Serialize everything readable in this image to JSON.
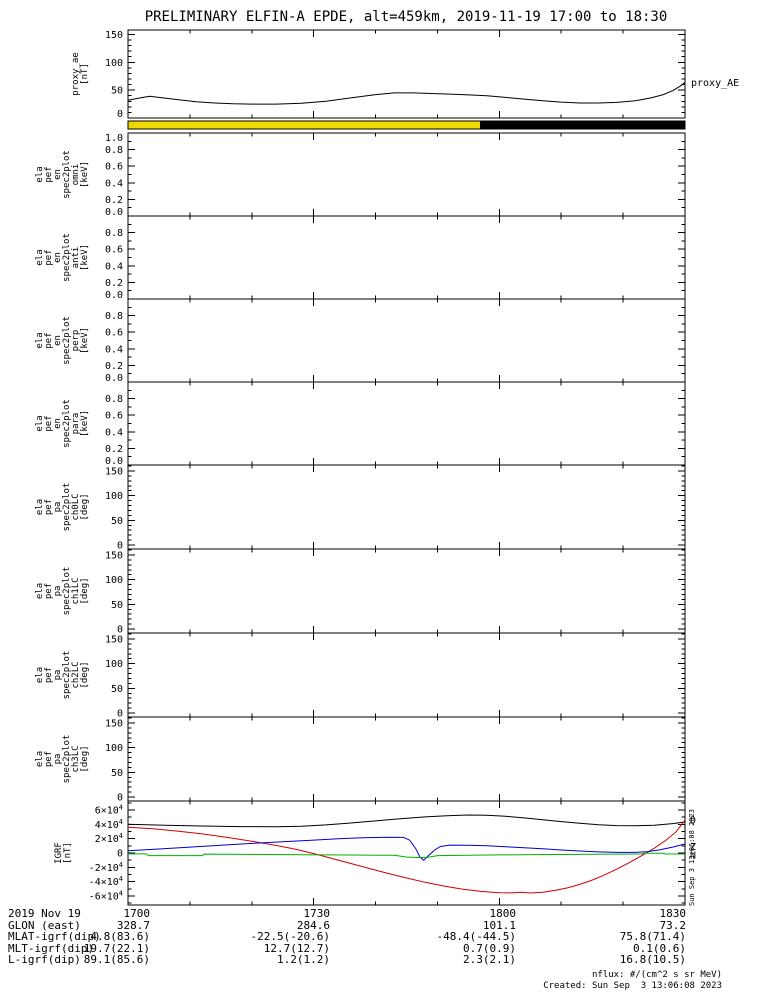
{
  "title": "PRELIMINARY ELFIN-A EPDE, alt=459km, 2019-11-19 17:00 to 18:30",
  "right_labels": {
    "proxy_ae": "proxy_AE"
  },
  "colors": {
    "sunlight_yellow": "#f0d800",
    "line_black": "#000000",
    "line_red": "#d00000",
    "line_blue": "#0000d0",
    "line_green": "#00b000"
  },
  "colorbar": {
    "segments": [
      {
        "color": "#f0d800",
        "from": 0.0,
        "to": 0.632
      },
      {
        "color": "#000000",
        "from": 0.632,
        "to": 1.0
      }
    ]
  },
  "panels": [
    {
      "id": "proxy_ae",
      "ylabel_lines": [
        "proxy_ae",
        "[nT]"
      ],
      "yticks": [
        [
          0,
          "0"
        ],
        [
          50,
          "50"
        ],
        [
          100,
          "100"
        ],
        [
          150,
          "150"
        ]
      ],
      "minor_step": 10
    },
    {
      "id": "en_omni",
      "ylabel_lines": [
        "ela",
        "pef",
        "en",
        "spec2plot",
        "omni",
        "[keV]"
      ],
      "yticks": [
        [
          0,
          "0.0"
        ],
        [
          0.2,
          "0.2"
        ],
        [
          0.4,
          "0.4"
        ],
        [
          0.6,
          "0.6"
        ],
        [
          0.8,
          "0.8"
        ],
        [
          1,
          "1.0"
        ]
      ],
      "minor_step": 0.1
    },
    {
      "id": "en_anti",
      "ylabel_lines": [
        "ela",
        "pef",
        "en",
        "spec2plot",
        "anti",
        "[keV]"
      ],
      "yticks": [
        [
          0,
          "0.0"
        ],
        [
          0.2,
          "0.2"
        ],
        [
          0.4,
          "0.4"
        ],
        [
          0.6,
          "0.6"
        ],
        [
          0.8,
          "0.8"
        ],
        [
          1,
          "1.0"
        ]
      ],
      "minor_step": 0.1,
      "suppress_top": true
    },
    {
      "id": "en_perp",
      "ylabel_lines": [
        "ela",
        "pef",
        "en",
        "spec2plot",
        "perp",
        "[keV]"
      ],
      "yticks": [
        [
          0,
          "0.0"
        ],
        [
          0.2,
          "0.2"
        ],
        [
          0.4,
          "0.4"
        ],
        [
          0.6,
          "0.6"
        ],
        [
          0.8,
          "0.8"
        ],
        [
          1,
          "1.0"
        ]
      ],
      "minor_step": 0.1,
      "suppress_top": true
    },
    {
      "id": "en_para",
      "ylabel_lines": [
        "ela",
        "pef",
        "en",
        "spec2plot",
        "para",
        "[keV]"
      ],
      "yticks": [
        [
          0,
          "0.0"
        ],
        [
          0.2,
          "0.2"
        ],
        [
          0.4,
          "0.4"
        ],
        [
          0.6,
          "0.6"
        ],
        [
          0.8,
          "0.8"
        ],
        [
          1,
          "1.0"
        ]
      ],
      "minor_step": 0.1,
      "suppress_top": true
    },
    {
      "id": "pa_ch0lc",
      "ylabel_lines": [
        "ela",
        "pef",
        "pa",
        "spec2plot",
        "ch0LC",
        "[deg]"
      ],
      "yticks": [
        [
          0,
          "0"
        ],
        [
          50,
          "50"
        ],
        [
          100,
          "100"
        ],
        [
          150,
          "150"
        ]
      ],
      "minor_step": 10
    },
    {
      "id": "pa_ch1lc",
      "ylabel_lines": [
        "ela",
        "pef",
        "pa",
        "spec2plot",
        "ch1LC",
        "[deg]"
      ],
      "yticks": [
        [
          0,
          "0"
        ],
        [
          50,
          "50"
        ],
        [
          100,
          "100"
        ],
        [
          150,
          "150"
        ]
      ],
      "minor_step": 10
    },
    {
      "id": "pa_ch2lc",
      "ylabel_lines": [
        "ela",
        "pef",
        "pa",
        "spec2plot",
        "ch2LC",
        "[deg]"
      ],
      "yticks": [
        [
          0,
          "0"
        ],
        [
          50,
          "50"
        ],
        [
          100,
          "100"
        ],
        [
          150,
          "150"
        ]
      ],
      "minor_step": 10
    },
    {
      "id": "pa_ch3lc",
      "ylabel_lines": [
        "ela",
        "pef",
        "pa",
        "spec2plot",
        "ch3LC",
        "[deg]"
      ],
      "yticks": [
        [
          0,
          "0"
        ],
        [
          50,
          "50"
        ],
        [
          100,
          "100"
        ],
        [
          150,
          "150"
        ]
      ],
      "minor_step": 10
    },
    {
      "id": "igrf",
      "ylabel_lines": [
        "IGRF",
        "[nT]"
      ],
      "yticks": [
        [
          -60000,
          "-6×10^4"
        ],
        [
          -40000,
          "-4×10^4"
        ],
        [
          -20000,
          "-2×10^4"
        ],
        [
          0,
          "0"
        ],
        [
          20000,
          "2×10^4"
        ],
        [
          40000,
          "4×10^4"
        ],
        [
          60000,
          "6×10^4"
        ]
      ],
      "minor_step": 10000
    }
  ],
  "chart_data": [
    {
      "type": "line",
      "panel": "proxy_ae",
      "title": "proxy_AE",
      "ylabel": "proxy_ae [nT]",
      "ylim": [
        0,
        150
      ],
      "xlim_minutes_after_1700": [
        0,
        90
      ],
      "x_tick_labels": [
        "1700",
        "1730",
        "1800",
        "1830"
      ],
      "series": [
        {
          "name": "proxy_AE",
          "color": "#000000",
          "points": [
            [
              0,
              32
            ],
            [
              2,
              36
            ],
            [
              3.5,
              39
            ],
            [
              5,
              37
            ],
            [
              8,
              33
            ],
            [
              11,
              29
            ],
            [
              14,
              27
            ],
            [
              17,
              25.5
            ],
            [
              20,
              25
            ],
            [
              24,
              25
            ],
            [
              28,
              26.5
            ],
            [
              32,
              30
            ],
            [
              36,
              36
            ],
            [
              40,
              42
            ],
            [
              43,
              45
            ],
            [
              46,
              45
            ],
            [
              49,
              44
            ],
            [
              52,
              43
            ],
            [
              55,
              41.5
            ],
            [
              58,
              40
            ],
            [
              61,
              37
            ],
            [
              64,
              34
            ],
            [
              67,
              31
            ],
            [
              70,
              28.5
            ],
            [
              73,
              27
            ],
            [
              76,
              27
            ],
            [
              79,
              28
            ],
            [
              82,
              31
            ],
            [
              84.5,
              36
            ],
            [
              86.5,
              42
            ],
            [
              88,
              49
            ],
            [
              89.2,
              57
            ],
            [
              90,
              64
            ]
          ]
        }
      ]
    },
    {
      "type": "line",
      "panel": "igrf",
      "title": "IGRF",
      "ylabel": "IGRF [nT]",
      "ylim": [
        -60000,
        60000
      ],
      "xlim_minutes_after_1700": [
        0,
        90
      ],
      "x_tick_labels": [
        "1700",
        "1730",
        "1800",
        "1830"
      ],
      "series": [
        {
          "name": "B",
          "color": "#000000",
          "points": [
            [
              0,
              40000
            ],
            [
              6,
              38800
            ],
            [
              12,
              37600
            ],
            [
              18,
              36800
            ],
            [
              24,
              36600
            ],
            [
              28,
              37400
            ],
            [
              32,
              39200
            ],
            [
              36,
              41800
            ],
            [
              40,
              44800
            ],
            [
              44,
              47800
            ],
            [
              48,
              50400
            ],
            [
              52,
              52200
            ],
            [
              55,
              53000
            ],
            [
              58,
              52600
            ],
            [
              61,
              51200
            ],
            [
              64,
              49000
            ],
            [
              67,
              46400
            ],
            [
              70,
              43800
            ],
            [
              73,
              41400
            ],
            [
              76,
              39400
            ],
            [
              79,
              38200
            ],
            [
              82,
              38000
            ],
            [
              85,
              38800
            ],
            [
              88,
              41000
            ],
            [
              90,
              43200
            ]
          ]
        },
        {
          "name": "D",
          "color": "#d00000",
          "points": [
            [
              0,
              36000
            ],
            [
              4,
              33800
            ],
            [
              8,
              30600
            ],
            [
              12,
              26600
            ],
            [
              16,
              21800
            ],
            [
              20,
              16400
            ],
            [
              24,
              10400
            ],
            [
              27,
              5400
            ],
            [
              30,
              -800
            ],
            [
              33,
              -7600
            ],
            [
              36,
              -14600
            ],
            [
              39,
              -21600
            ],
            [
              42,
              -28400
            ],
            [
              45,
              -34800
            ],
            [
              48,
              -40800
            ],
            [
              51,
              -46000
            ],
            [
              54,
              -50400
            ],
            [
              57,
              -53600
            ],
            [
              60,
              -55400
            ],
            [
              62,
              -55600
            ],
            [
              63.5,
              -54600
            ],
            [
              65,
              -55800
            ],
            [
              67,
              -54600
            ],
            [
              69,
              -52200
            ],
            [
              71,
              -48600
            ],
            [
              73,
              -43800
            ],
            [
              75,
              -37800
            ],
            [
              77,
              -30600
            ],
            [
              79,
              -22400
            ],
            [
              81,
              -13400
            ],
            [
              83,
              -3800
            ],
            [
              85,
              6600
            ],
            [
              87,
              18200
            ],
            [
              88.5,
              29000
            ],
            [
              89.5,
              40000
            ],
            [
              90,
              46000
            ]
          ]
        },
        {
          "name": "Z",
          "color": "#0000d0",
          "points": [
            [
              0,
              3000
            ],
            [
              5,
              5600
            ],
            [
              10,
              8200
            ],
            [
              15,
              10800
            ],
            [
              20,
              13400
            ],
            [
              25,
              15800
            ],
            [
              30,
              18000
            ],
            [
              34,
              19800
            ],
            [
              38,
              21200
            ],
            [
              42,
              22000
            ],
            [
              44.5,
              21800
            ],
            [
              45.5,
              18000
            ],
            [
              46.5,
              6000
            ],
            [
              47.2,
              -6000
            ],
            [
              47.8,
              -10000
            ],
            [
              48.5,
              -4000
            ],
            [
              49.5,
              4000
            ],
            [
              50.5,
              9000
            ],
            [
              52,
              11000
            ],
            [
              55,
              10800
            ],
            [
              58,
              10000
            ],
            [
              61,
              8800
            ],
            [
              64,
              7400
            ],
            [
              67,
              5800
            ],
            [
              70,
              4200
            ],
            [
              73,
              2800
            ],
            [
              76,
              1600
            ],
            [
              79,
              800
            ],
            [
              82,
              800
            ],
            [
              84,
              2000
            ],
            [
              86,
              4600
            ],
            [
              88,
              8200
            ],
            [
              90,
              12600
            ]
          ]
        },
        {
          "name": "N",
          "color": "#00b000",
          "points": [
            [
              0,
              -1200
            ],
            [
              3,
              -1200
            ],
            [
              3.3,
              -3600
            ],
            [
              12,
              -3600
            ],
            [
              12.3,
              -1600
            ],
            [
              20,
              -2000
            ],
            [
              28,
              -2400
            ],
            [
              36,
              -2800
            ],
            [
              43,
              -3200
            ],
            [
              45,
              -5600
            ],
            [
              47,
              -6400
            ],
            [
              48.5,
              -6000
            ],
            [
              50,
              -3600
            ],
            [
              55,
              -3000
            ],
            [
              60,
              -2600
            ],
            [
              66,
              -2200
            ],
            [
              72,
              -1900
            ],
            [
              78,
              -1600
            ],
            [
              83,
              -1400
            ],
            [
              83.3,
              -400
            ],
            [
              86.5,
              -400
            ],
            [
              86.8,
              -1400
            ],
            [
              90,
              -1400
            ]
          ]
        }
      ]
    }
  ],
  "igrf_labels": [
    {
      "text": "D",
      "color": "#d00000",
      "value": 46000
    },
    {
      "text": "Z",
      "color": "#0000d0",
      "value": 9000
    },
    {
      "text": "N",
      "color": "#00b000",
      "value": -3000
    }
  ],
  "footer": {
    "rows": [
      {
        "label": "2019 Nov 19",
        "values": [
          "1700",
          "1730",
          "1800",
          "1830"
        ]
      },
      {
        "label": "GLON (east)",
        "values": [
          "328.7",
          "284.6",
          "101.1",
          "73.2"
        ]
      },
      {
        "label": "MLAT-igrf(dip)",
        "values": [
          "4.8(83.6)",
          "-22.5(-20.6)",
          "-48.4(-44.5)",
          "75.8(71.4)"
        ]
      },
      {
        "label": "MLT-igrf(dip)",
        "values": [
          "19.7(22.1)",
          "12.7(12.7)",
          "0.7(0.9)",
          "0.1(0.6)"
        ]
      },
      {
        "label": "L-igrf(dip)",
        "values": [
          "89.1(85.6)",
          "1.2(1.2)",
          "2.3(2.1)",
          "16.8(10.5)"
        ]
      }
    ]
  },
  "notes": {
    "nflux": "nflux: #/(cm^2 s sr MeV)",
    "created": "Created: Sun Sep  3 13:06:08 2023",
    "created_vertical": "Sun Sep  3 13:06:08 2023"
  }
}
